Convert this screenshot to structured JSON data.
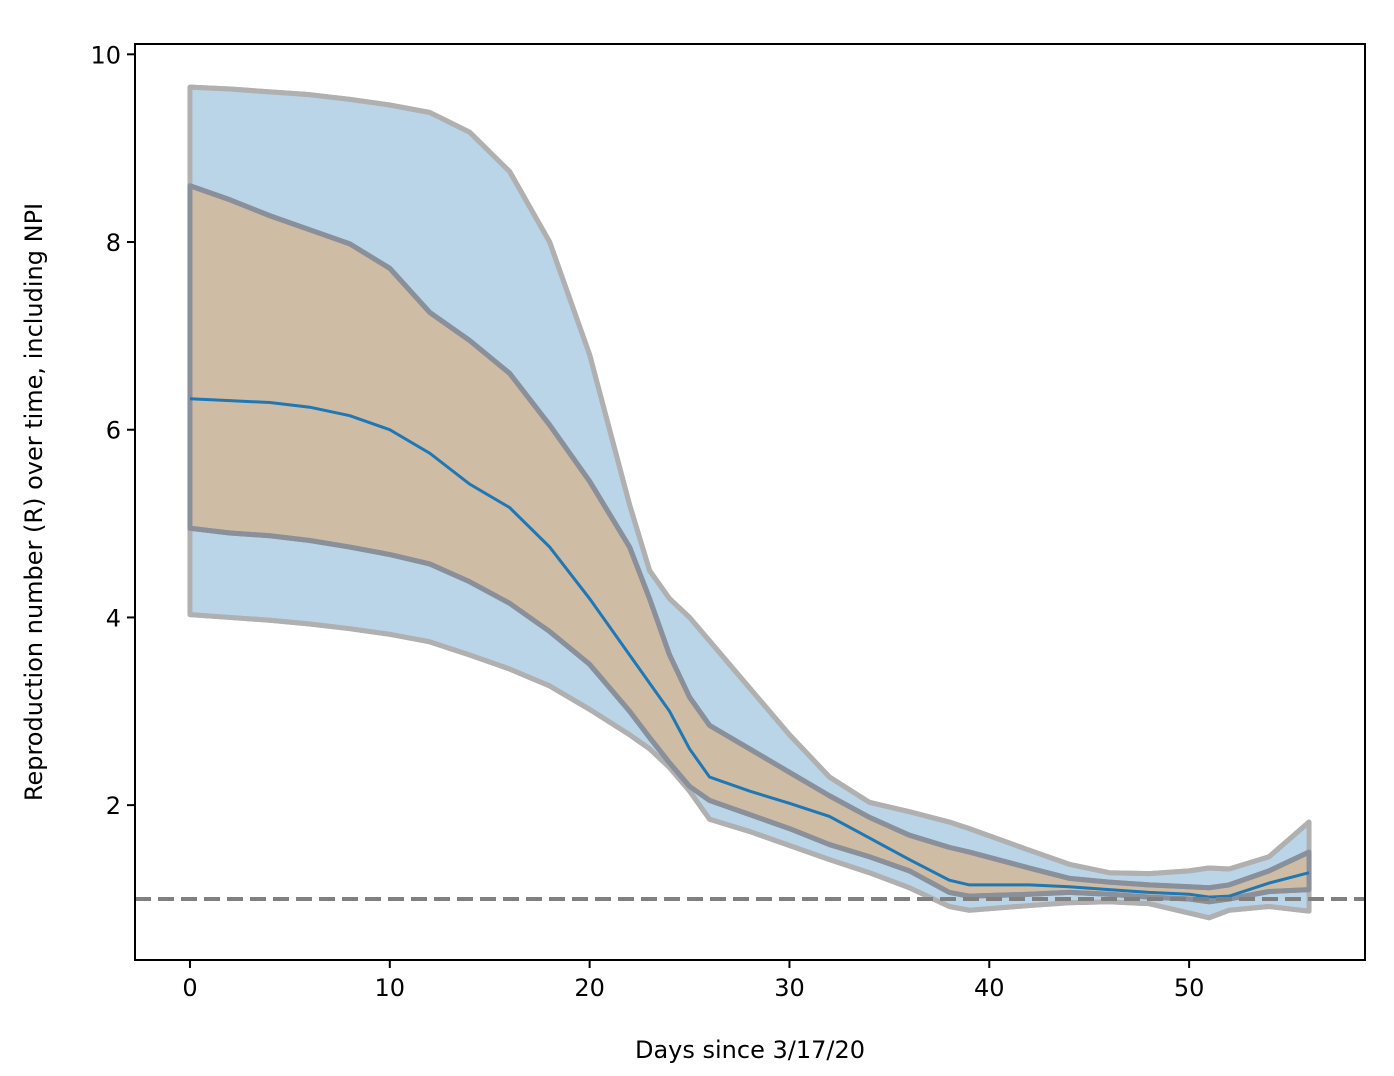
{
  "chart_data": {
    "type": "band-line",
    "xlabel": "Days since 3/17/20",
    "ylabel": "Reproduction number (R) over time, including NPI",
    "x": [
      0,
      2,
      4,
      6,
      8,
      10,
      12,
      14,
      16,
      18,
      20,
      22,
      23,
      24,
      25,
      26,
      28,
      30,
      32,
      34,
      36,
      38,
      39,
      42,
      44,
      46,
      48,
      50,
      51,
      52,
      54,
      56
    ],
    "bands": [
      {
        "color": "#bad5e8",
        "edge_color": "#b0b0b0",
        "lower": [
          4.03,
          4.0,
          3.97,
          3.93,
          3.88,
          3.82,
          3.74,
          3.6,
          3.45,
          3.27,
          3.02,
          2.75,
          2.6,
          2.4,
          2.15,
          1.85,
          1.72,
          1.57,
          1.42,
          1.28,
          1.12,
          0.92,
          0.88,
          0.93,
          0.96,
          0.97,
          0.95,
          0.85,
          0.8,
          0.88,
          0.92,
          0.87
        ],
        "upper": [
          9.65,
          9.63,
          9.6,
          9.57,
          9.52,
          9.46,
          9.38,
          9.17,
          8.75,
          8.0,
          6.8,
          5.2,
          4.5,
          4.2,
          4.0,
          3.75,
          3.25,
          2.75,
          2.3,
          2.03,
          1.93,
          1.82,
          1.75,
          1.52,
          1.37,
          1.28,
          1.27,
          1.3,
          1.33,
          1.32,
          1.45,
          1.82
        ]
      },
      {
        "color": "#cfbca5",
        "edge_color": "#8a9099",
        "lower": [
          4.95,
          4.9,
          4.87,
          4.82,
          4.75,
          4.67,
          4.57,
          4.38,
          4.15,
          3.85,
          3.5,
          3.0,
          2.72,
          2.45,
          2.2,
          2.05,
          1.9,
          1.75,
          1.58,
          1.45,
          1.3,
          1.07,
          1.03,
          1.05,
          1.07,
          1.05,
          1.02,
          1.0,
          0.97,
          1.0,
          1.08,
          1.1
        ],
        "upper": [
          8.6,
          8.45,
          8.28,
          8.13,
          7.98,
          7.72,
          7.25,
          6.95,
          6.6,
          6.05,
          5.45,
          4.75,
          4.2,
          3.6,
          3.15,
          2.85,
          2.6,
          2.35,
          2.1,
          1.87,
          1.68,
          1.55,
          1.5,
          1.33,
          1.22,
          1.18,
          1.15,
          1.13,
          1.12,
          1.15,
          1.3,
          1.5
        ]
      }
    ],
    "series": [
      {
        "color": "#1f77b4",
        "values": [
          6.33,
          6.31,
          6.29,
          6.24,
          6.15,
          6.0,
          5.75,
          5.42,
          5.17,
          4.75,
          4.2,
          3.6,
          3.3,
          3.0,
          2.6,
          2.3,
          2.15,
          2.02,
          1.88,
          1.65,
          1.42,
          1.2,
          1.15,
          1.15,
          1.13,
          1.1,
          1.07,
          1.05,
          1.02,
          1.03,
          1.17,
          1.28
        ]
      }
    ],
    "hline": {
      "value": 1,
      "color": "#808080"
    },
    "xlim": [
      -2.75,
      58.8
    ],
    "ylim": [
      0.35,
      10.11
    ],
    "xticks": [
      0,
      10,
      20,
      30,
      40,
      50
    ],
    "yticks": [
      2,
      4,
      6,
      8,
      10
    ]
  }
}
